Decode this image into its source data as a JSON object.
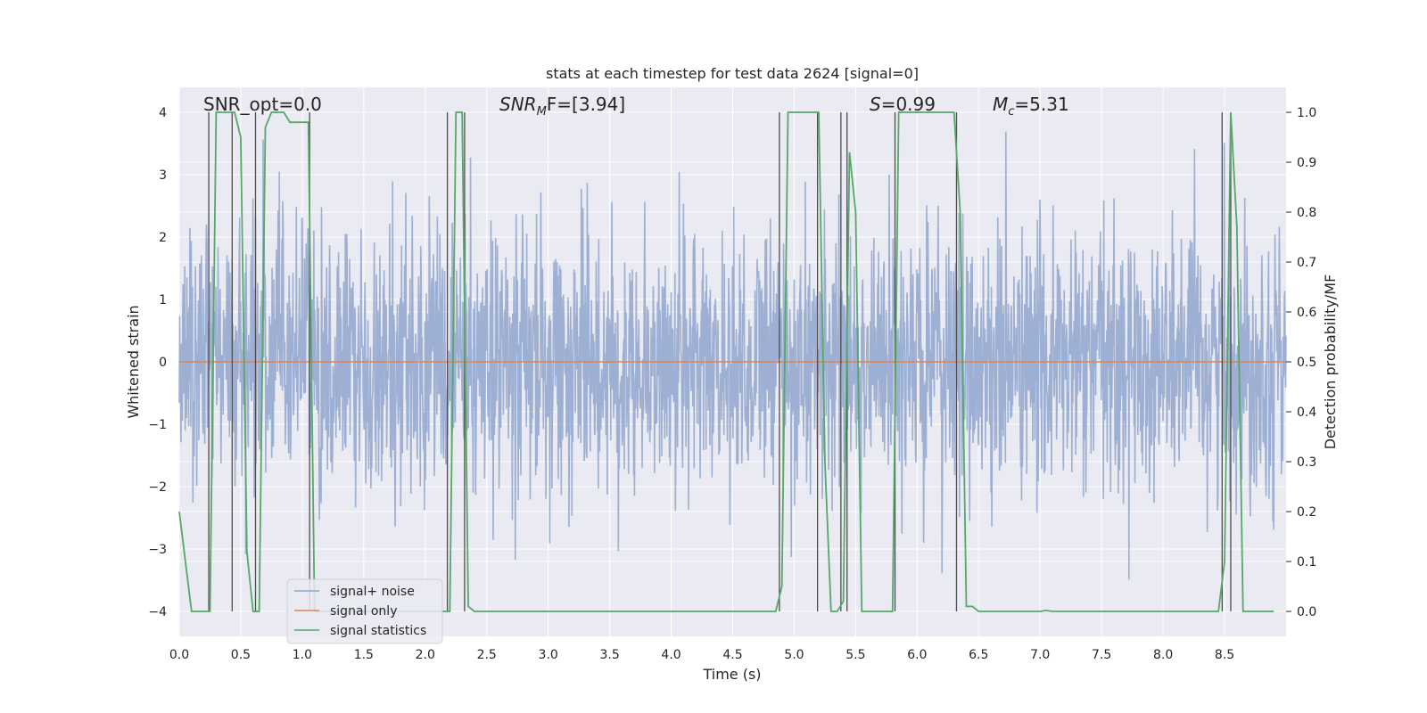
{
  "chart_data": {
    "type": "line",
    "title": "stats at each timestep for test data 2624 [signal=0]",
    "xlabel": "Time (s)",
    "ylabel_left": "Whitened strain",
    "ylabel_right": "Detection probability/MF",
    "xlim": [
      0.0,
      9.0
    ],
    "ylim_left": [
      -4.4,
      4.4
    ],
    "ylim_right": [
      -0.05,
      1.05
    ],
    "xticks": [
      "0.0",
      "0.5",
      "1.0",
      "1.5",
      "2.0",
      "2.5",
      "3.0",
      "3.5",
      "4.0",
      "4.5",
      "5.0",
      "5.5",
      "6.0",
      "6.5",
      "7.0",
      "7.5",
      "8.0",
      "8.5"
    ],
    "yticks_left": [
      "4",
      "3",
      "2",
      "1",
      "0",
      "−1",
      "−2",
      "−3",
      "−4"
    ],
    "yticks_right": [
      "1.0",
      "0.9",
      "0.8",
      "0.7",
      "0.6",
      "0.5",
      "0.4",
      "0.3",
      "0.2",
      "0.1",
      "0.0"
    ],
    "annotations": {
      "snr_opt": "SNR_opt=0.0",
      "snr_mf": "SNR_MF=[3.94]",
      "s": "S=0.99",
      "mc": "M_c=5.31"
    },
    "legend": {
      "position": "lower-left",
      "entries": [
        "signal+ noise",
        "signal only",
        "signal statistics"
      ]
    },
    "colors": {
      "noise": "#8fa5cc",
      "signal_only": "#dd8452",
      "statistics": "#55a868",
      "vlines": "#4d4d4d",
      "background": "#eaeaf2",
      "grid": "#ffffff"
    },
    "series": [
      {
        "name": "signal statistics",
        "axis": "right",
        "x": [
          0.0,
          0.05,
          0.1,
          0.15,
          0.2,
          0.25,
          0.3,
          0.35,
          0.4,
          0.45,
          0.5,
          0.55,
          0.6,
          0.65,
          0.7,
          0.75,
          0.8,
          0.85,
          0.9,
          0.95,
          1.0,
          1.05,
          1.1,
          1.15,
          1.2,
          2.15,
          2.2,
          2.25,
          2.3,
          2.35,
          2.4,
          4.85,
          4.9,
          4.95,
          5.0,
          5.05,
          5.1,
          5.15,
          5.2,
          5.25,
          5.3,
          5.35,
          5.4,
          5.45,
          5.5,
          5.55,
          5.6,
          5.65,
          5.7,
          5.75,
          5.8,
          5.85,
          5.9,
          6.3,
          6.35,
          6.4,
          6.45,
          6.5,
          6.6,
          6.7,
          7.0,
          7.05,
          7.1,
          8.45,
          8.5,
          8.55,
          8.6,
          8.65,
          8.7,
          8.75,
          8.8,
          8.9
        ],
        "values": [
          0.2,
          0.1,
          0.0,
          0.0,
          0.0,
          0.0,
          1.0,
          1.0,
          1.0,
          1.0,
          0.95,
          0.12,
          0.0,
          0.0,
          0.97,
          1.0,
          1.0,
          1.0,
          0.98,
          0.98,
          0.98,
          0.98,
          0.0,
          0.0,
          0.0,
          0.0,
          0.0,
          1.0,
          1.0,
          0.01,
          0.0,
          0.0,
          0.05,
          1.0,
          1.0,
          1.0,
          1.0,
          1.0,
          1.0,
          0.3,
          0.0,
          0.0,
          0.02,
          0.92,
          0.8,
          0.0,
          0.0,
          0.0,
          0.0,
          0.0,
          0.0,
          1.0,
          1.0,
          1.0,
          0.8,
          0.01,
          0.01,
          0.0,
          0.0,
          0.0,
          0.0,
          0.002,
          0.0,
          0.0,
          0.1,
          1.0,
          0.77,
          0.0,
          0.0,
          0.0,
          0.0,
          0.0
        ]
      },
      {
        "name": "signal only",
        "axis": "left",
        "x": [
          0.0,
          9.0
        ],
        "values": [
          0.0,
          0.0
        ]
      },
      {
        "name": "signal+ noise",
        "axis": "left",
        "description_of_values": "dense white-noise strain, std ~1, range about -3.9 to 3.7"
      }
    ],
    "vlines_x": [
      0.24,
      0.43,
      0.62,
      1.06,
      2.18,
      2.32,
      4.88,
      5.19,
      5.38,
      5.43,
      5.82,
      6.32,
      8.48,
      8.55
    ]
  }
}
